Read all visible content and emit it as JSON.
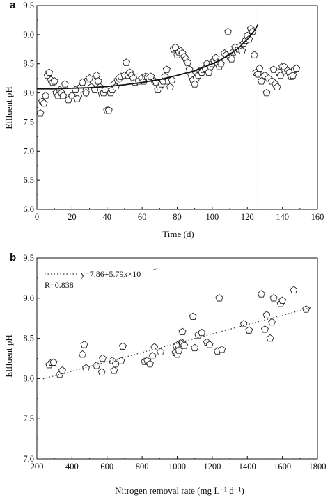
{
  "chart_data": [
    {
      "type": "scatter",
      "panel": "a",
      "xlabel": "Time (d)",
      "ylabel": "Effluent pH",
      "xlim": [
        0,
        160
      ],
      "ylim": [
        6.0,
        9.5
      ],
      "xticks": [
        "0",
        "20",
        "40",
        "60",
        "80",
        "100",
        "120",
        "140",
        "160"
      ],
      "yticks": [
        "6.0",
        "6.5",
        "7.0",
        "7.5",
        "8.0",
        "8.5",
        "9.0",
        "9.5"
      ],
      "grid": false,
      "marker": "pentagon",
      "reference_line_x": 126,
      "series": [
        {
          "points": [
            [
              2,
              7.65
            ],
            [
              3,
              7.85
            ],
            [
              4,
              7.82
            ],
            [
              5,
              7.95
            ],
            [
              6,
              8.3
            ],
            [
              7,
              8.35
            ],
            [
              8,
              8.22
            ],
            [
              9,
              8.18
            ],
            [
              10,
              8.2
            ],
            [
              11,
              8.0
            ],
            [
              12,
              7.95
            ],
            [
              13,
              8.05
            ],
            [
              14,
              8.0
            ],
            [
              15,
              7.95
            ],
            [
              16,
              8.15
            ],
            [
              18,
              7.88
            ],
            [
              20,
              7.95
            ],
            [
              22,
              8.05
            ],
            [
              23,
              7.9
            ],
            [
              25,
              8.1
            ],
            [
              26,
              8.18
            ],
            [
              27,
              7.98
            ],
            [
              28,
              8.0
            ],
            [
              29,
              8.22
            ],
            [
              30,
              8.25
            ],
            [
              31,
              8.1
            ],
            [
              33,
              8.05
            ],
            [
              34,
              8.3
            ],
            [
              35,
              8.2
            ],
            [
              36,
              8.1
            ],
            [
              37,
              7.98
            ],
            [
              38,
              8.0
            ],
            [
              39,
              8.05
            ],
            [
              40,
              7.7
            ],
            [
              41,
              7.7
            ],
            [
              42,
              8.0
            ],
            [
              43,
              8.05
            ],
            [
              44,
              8.15
            ],
            [
              45,
              8.1
            ],
            [
              46,
              8.22
            ],
            [
              47,
              8.25
            ],
            [
              48,
              8.28
            ],
            [
              50,
              8.3
            ],
            [
              51,
              8.52
            ],
            [
              52,
              8.3
            ],
            [
              53,
              8.35
            ],
            [
              54,
              8.3
            ],
            [
              55,
              8.25
            ],
            [
              56,
              8.18
            ],
            [
              58,
              8.2
            ],
            [
              60,
              8.25
            ],
            [
              61,
              8.2
            ],
            [
              62,
              8.28
            ],
            [
              63,
              8.27
            ],
            [
              64,
              8.25
            ],
            [
              65,
              8.28
            ],
            [
              67,
              8.2
            ],
            [
              68,
              8.18
            ],
            [
              69,
              8.05
            ],
            [
              70,
              8.1
            ],
            [
              71,
              8.15
            ],
            [
              72,
              8.2
            ],
            [
              73,
              8.28
            ],
            [
              74,
              8.4
            ],
            [
              75,
              8.2
            ],
            [
              76,
              8.1
            ],
            [
              77,
              8.22
            ],
            [
              78,
              8.75
            ],
            [
              79,
              8.78
            ],
            [
              80,
              8.65
            ],
            [
              81,
              8.7
            ],
            [
              82,
              8.72
            ],
            [
              83,
              8.68
            ],
            [
              84,
              8.62
            ],
            [
              85,
              8.58
            ],
            [
              86,
              8.52
            ],
            [
              87,
              8.4
            ],
            [
              88,
              8.3
            ],
            [
              89,
              8.22
            ],
            [
              90,
              8.15
            ],
            [
              91,
              8.25
            ],
            [
              92,
              8.3
            ],
            [
              93,
              8.38
            ],
            [
              94,
              8.35
            ],
            [
              95,
              8.4
            ],
            [
              96,
              8.42
            ],
            [
              97,
              8.5
            ],
            [
              98,
              8.35
            ],
            [
              99,
              8.45
            ],
            [
              100,
              8.5
            ],
            [
              101,
              8.55
            ],
            [
              102,
              8.6
            ],
            [
              103,
              8.52
            ],
            [
              104,
              8.45
            ],
            [
              105,
              8.5
            ],
            [
              107,
              8.68
            ],
            [
              108,
              8.65
            ],
            [
              109,
              9.05
            ],
            [
              110,
              8.62
            ],
            [
              111,
              8.58
            ],
            [
              112,
              8.7
            ],
            [
              113,
              8.78
            ],
            [
              114,
              8.72
            ],
            [
              115,
              8.75
            ],
            [
              116,
              8.8
            ],
            [
              117,
              8.72
            ],
            [
              118,
              8.85
            ],
            [
              119,
              8.9
            ],
            [
              120,
              8.98
            ],
            [
              121,
              8.92
            ],
            [
              122,
              9.1
            ],
            [
              123,
              9.05
            ],
            [
              124,
              8.65
            ],
            [
              125,
              8.35
            ],
            [
              126,
              8.32
            ],
            [
              127,
              8.42
            ],
            [
              128,
              8.2
            ],
            [
              130,
              8.3
            ],
            [
              131,
              8.0
            ],
            [
              132,
              8.25
            ],
            [
              134,
              8.2
            ],
            [
              135,
              8.4
            ],
            [
              136,
              8.15
            ],
            [
              137,
              8.1
            ],
            [
              138,
              8.35
            ],
            [
              139,
              8.3
            ],
            [
              140,
              8.45
            ],
            [
              141,
              8.45
            ],
            [
              143,
              8.38
            ],
            [
              144,
              8.35
            ],
            [
              145,
              8.28
            ],
            [
              146,
              8.3
            ],
            [
              147,
              8.4
            ],
            [
              148,
              8.42
            ]
          ]
        },
        {
          "type": "line",
          "fit": true,
          "x": [
            0,
            10,
            20,
            30,
            40,
            50,
            60,
            70,
            80,
            90,
            100,
            105,
            110,
            115,
            120,
            122,
            124,
            126
          ],
          "values": [
            8.07,
            8.07,
            8.08,
            8.09,
            8.11,
            8.14,
            8.18,
            8.23,
            8.3,
            8.38,
            8.5,
            8.57,
            8.66,
            8.77,
            8.92,
            8.99,
            9.07,
            9.17
          ]
        }
      ]
    },
    {
      "type": "scatter",
      "panel": "b",
      "xlabel": "Nitrogen removal rate (mg L⁻¹ d⁻¹)",
      "ylabel": "Effluent pH",
      "xlim": [
        200,
        1800
      ],
      "ylim": [
        7.0,
        9.5
      ],
      "xticks": [
        "200",
        "400",
        "600",
        "800",
        "1000",
        "1200",
        "1400",
        "1600",
        "1800"
      ],
      "yticks": [
        "7.0",
        "7.5",
        "8.0",
        "8.5",
        "9.0",
        "9.5"
      ],
      "grid": false,
      "marker": "pentagon",
      "legend_position": "top-left",
      "annotations": [
        "y=7.86+5.79x×10",
        "-4",
        "R=0.838"
      ],
      "series": [
        {
          "points": [
            [
              270,
              8.17
            ],
            [
              285,
              8.2
            ],
            [
              295,
              8.2
            ],
            [
              330,
              8.05
            ],
            [
              345,
              8.1
            ],
            [
              460,
              8.3
            ],
            [
              470,
              8.42
            ],
            [
              480,
              8.13
            ],
            [
              540,
              8.16
            ],
            [
              570,
              8.08
            ],
            [
              575,
              8.25
            ],
            [
              630,
              8.22
            ],
            [
              640,
              8.1
            ],
            [
              650,
              8.18
            ],
            [
              680,
              8.22
            ],
            [
              690,
              8.4
            ],
            [
              815,
              8.21
            ],
            [
              830,
              8.22
            ],
            [
              845,
              8.18
            ],
            [
              860,
              8.28
            ],
            [
              870,
              8.39
            ],
            [
              905,
              8.33
            ],
            [
              990,
              8.32
            ],
            [
              995,
              8.4
            ],
            [
              1000,
              8.3
            ],
            [
              1005,
              8.42
            ],
            [
              1010,
              8.35
            ],
            [
              1025,
              8.45
            ],
            [
              1030,
              8.44
            ],
            [
              1030,
              8.58
            ],
            [
              1040,
              8.41
            ],
            [
              1090,
              8.77
            ],
            [
              1100,
              8.38
            ],
            [
              1120,
              8.54
            ],
            [
              1140,
              8.57
            ],
            [
              1170,
              8.45
            ],
            [
              1185,
              8.42
            ],
            [
              1230,
              8.34
            ],
            [
              1240,
              9.0
            ],
            [
              1255,
              8.36
            ],
            [
              1380,
              8.68
            ],
            [
              1410,
              8.6
            ],
            [
              1480,
              9.05
            ],
            [
              1500,
              8.61
            ],
            [
              1510,
              8.79
            ],
            [
              1530,
              8.5
            ],
            [
              1540,
              8.7
            ],
            [
              1550,
              9.0
            ],
            [
              1590,
              8.93
            ],
            [
              1600,
              8.97
            ],
            [
              1665,
              9.1
            ],
            [
              1735,
              8.86
            ]
          ]
        },
        {
          "type": "line",
          "fit": true,
          "x": [
            235,
            1780
          ],
          "values": [
            7.997,
            8.891
          ]
        }
      ]
    }
  ]
}
